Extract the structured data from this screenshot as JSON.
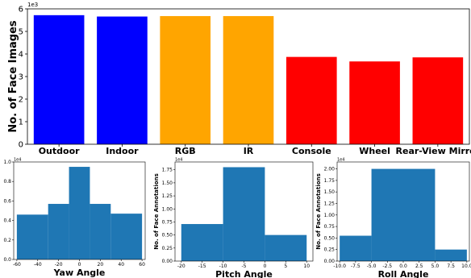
{
  "chart_data": [
    {
      "type": "bar",
      "ylabel": "No. of Face Images",
      "xlabel": "",
      "exponent_label": "1e3",
      "ylim": [
        0,
        6
      ],
      "yticks": [
        "0",
        "1",
        "2",
        "3",
        "4",
        "5",
        "6"
      ],
      "categories": [
        "Outdoor",
        "Indoor",
        "RGB",
        "IR",
        "Console",
        "Wheel",
        "Rear-View Mirror"
      ],
      "values": [
        5.72,
        5.66,
        5.68,
        5.68,
        3.87,
        3.67,
        3.85
      ],
      "colors": [
        "#0000ff",
        "#0000ff",
        "#ffa500",
        "#ffa500",
        "#ff0000",
        "#ff0000",
        "#ff0000"
      ]
    },
    {
      "type": "bar",
      "xlabel": "Yaw Angle",
      "ylabel": "",
      "exponent_label": "1e4",
      "bin_edges": [
        -60,
        -30,
        -10,
        10,
        30,
        60
      ],
      "values": [
        0.46,
        0.57,
        0.95,
        0.57,
        0.47
      ],
      "xlim": [
        -63,
        63
      ],
      "ylim": [
        0,
        1.0
      ],
      "xticks": [
        "-60",
        "-40",
        "-20",
        "0",
        "20",
        "40",
        "60"
      ],
      "yticks": [
        "0.0",
        "0.2",
        "0.4",
        "0.6",
        "0.8",
        "1.0"
      ],
      "color": "#1f77b4"
    },
    {
      "type": "bar",
      "xlabel": "Pitch Angle",
      "ylabel": "No. of Face Annotations",
      "exponent_label": "1e4",
      "bin_edges": [
        -20,
        -10,
        0,
        10
      ],
      "values": [
        0.71,
        1.8,
        0.5
      ],
      "xlim": [
        -21.5,
        11.5
      ],
      "ylim": [
        0,
        1.9
      ],
      "xticks": [
        "-20",
        "-15",
        "-10",
        "-5",
        "0",
        "5",
        "10"
      ],
      "yticks": [
        "0.00",
        "0.25",
        "0.50",
        "0.75",
        "1.00",
        "1.25",
        "1.50",
        "1.75"
      ],
      "color": "#1f77b4"
    },
    {
      "type": "bar",
      "xlabel": "Roll Angle",
      "ylabel": "No. of Face Annotations",
      "exponent_label": "1e4",
      "bin_edges": [
        -10,
        -5,
        5,
        10
      ],
      "values": [
        0.55,
        2.0,
        0.25
      ],
      "xlim": [
        -10.4,
        10.4
      ],
      "ylim": [
        0,
        2.15
      ],
      "xticks": [
        "-10.0",
        "-7.5",
        "-5.0",
        "-2.5",
        "0.0",
        "2.5",
        "5.0",
        "7.5",
        "10.0"
      ],
      "yticks": [
        "0.00",
        "0.25",
        "0.50",
        "0.75",
        "1.00",
        "1.25",
        "1.50",
        "1.75",
        "2.00"
      ],
      "color": "#1f77b4"
    }
  ]
}
